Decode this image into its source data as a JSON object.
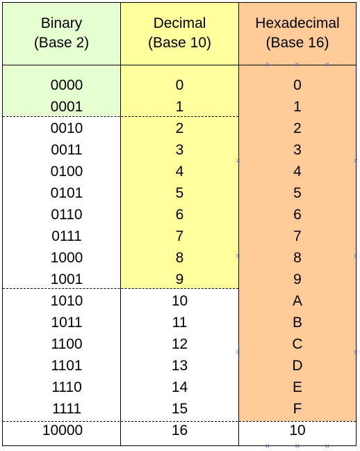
{
  "headers": {
    "binary": [
      "Binary",
      "(Base 2)"
    ],
    "decimal": [
      "Decimal",
      "(Base 10)"
    ],
    "hex": [
      "Hexadecimal",
      "(Base 16)"
    ]
  },
  "rows": [
    {
      "bin": "0000",
      "dec": "0",
      "hex": "0"
    },
    {
      "bin": "0001",
      "dec": "1",
      "hex": "1"
    },
    {
      "bin": "0010",
      "dec": "2",
      "hex": "2"
    },
    {
      "bin": "0011",
      "dec": "3",
      "hex": "3"
    },
    {
      "bin": "0100",
      "dec": "4",
      "hex": "4"
    },
    {
      "bin": "0101",
      "dec": "5",
      "hex": "5"
    },
    {
      "bin": "0110",
      "dec": "6",
      "hex": "6"
    },
    {
      "bin": "0111",
      "dec": "7",
      "hex": "7"
    },
    {
      "bin": "1000",
      "dec": "8",
      "hex": "8"
    },
    {
      "bin": "1001",
      "dec": "9",
      "hex": "9"
    },
    {
      "bin": "1010",
      "dec": "10",
      "hex": "A"
    },
    {
      "bin": "1011",
      "dec": "11",
      "hex": "B"
    },
    {
      "bin": "1100",
      "dec": "12",
      "hex": "C"
    },
    {
      "bin": "1101",
      "dec": "13",
      "hex": "D"
    },
    {
      "bin": "1110",
      "dec": "14",
      "hex": "E"
    },
    {
      "bin": "1111",
      "dec": "15",
      "hex": "F"
    },
    {
      "bin": "10000",
      "dec": "16",
      "hex": "10"
    }
  ],
  "colors": {
    "binary_fill": "#e5ffd1",
    "decimal_fill": "#ffff9d",
    "hex_fill": "#ffcc99"
  }
}
